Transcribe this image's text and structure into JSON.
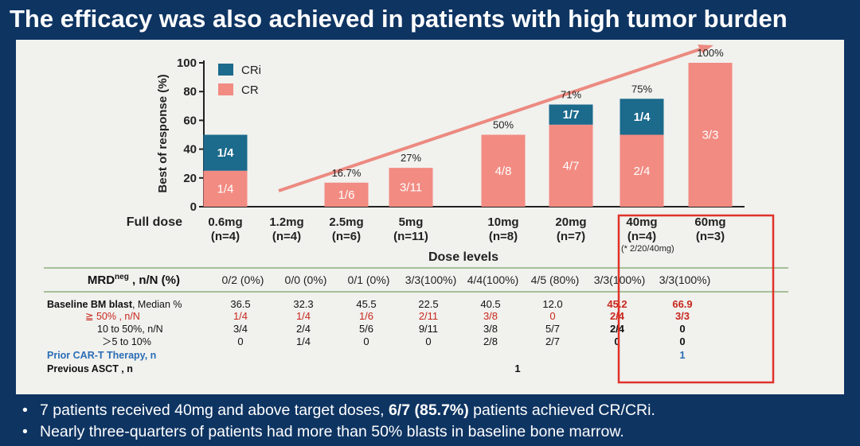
{
  "slide": {
    "title": "The efficacy was also achieved in patients with high tumor burden",
    "bullets": [
      {
        "pre": "7 patients received 40mg and above target doses, ",
        "highlight": "6/7 (85.7%)",
        "post": " patients achieved CR/CRi."
      },
      {
        "pre": "Nearly three-quarters of patients had more than 50% blasts in baseline  bone marrow.",
        "highlight": "",
        "post": ""
      }
    ]
  },
  "chart_data": {
    "type": "bar",
    "stacked": true,
    "ylabel": "Best of response (%)",
    "xlabel": "Dose levels",
    "ylim": [
      0,
      100
    ],
    "yticks": [
      0,
      20,
      40,
      60,
      80,
      100
    ],
    "row_label": "Full dose",
    "categories": [
      "0.6mg",
      "1.2mg",
      "2.5mg",
      "5mg",
      "10mg",
      "20mg",
      "40mg",
      "60mg"
    ],
    "n_labels": [
      "(n=4)",
      "(n=4)",
      "(n=6)",
      "(n=11)",
      "(n=8)",
      "(n=7)",
      "(n=4)",
      "(n=3)"
    ],
    "footnote": "(* 2/20/40mg)",
    "series": [
      {
        "name": "CR",
        "color": "#f28b82",
        "values": [
          25,
          0,
          16.7,
          27,
          50,
          57,
          50,
          100
        ],
        "labels": [
          "1/4",
          "",
          "1/6",
          "3/11",
          "4/8",
          "4/7",
          "2/4",
          "3/3"
        ]
      },
      {
        "name": "CRi",
        "color": "#1c6a8c",
        "values": [
          25,
          0,
          0,
          0,
          0,
          14,
          25,
          0
        ],
        "labels": [
          "1/4",
          "",
          "",
          "",
          "",
          "1/7",
          "1/4",
          ""
        ]
      }
    ],
    "totals": [
      "",
      "",
      "16.7%",
      "27%",
      "50%",
      "71%",
      "75%",
      "100%"
    ],
    "legend": [
      "CRi",
      "CR"
    ]
  },
  "table": {
    "mrd_label_main": "MRD",
    "mrd_label_sup": "neg",
    "mrd_label_rest": " , n/N (%)",
    "mrd_values": [
      "0/2 (0%)",
      "0/0 (0%)",
      "0/1  (0%)",
      "3/3(100%)",
      "4/4(100%)",
      "4/5 (80%)",
      "3/3(100%)",
      "3/3(100%)"
    ],
    "rows": [
      {
        "label_bold": "Baseline BM blast",
        "label_rest": ", Median %",
        "style": "black",
        "values": [
          "36.5",
          "32.3",
          "45.5",
          "22.5",
          "40.5",
          "12.0",
          "45.2",
          "66.9"
        ]
      },
      {
        "label_bold": "",
        "label_rest": "≧ 50% , n/N",
        "style": "red",
        "values": [
          "1/4",
          "1/4",
          "1/6",
          "2/11",
          "3/8",
          "0",
          "2/4",
          "3/3"
        ]
      },
      {
        "label_bold": "",
        "label_rest": "10 to 50%, n/N",
        "style": "black",
        "values": [
          "3/4",
          "2/4",
          "5/6",
          "9/11",
          "3/8",
          "5/7",
          "2/4",
          "0"
        ]
      },
      {
        "label_bold": "",
        "label_rest": "＞5 to 10%",
        "style": "black",
        "values": [
          "0",
          "1/4",
          "0",
          "0",
          "2/8",
          "2/7",
          "0",
          "0"
        ]
      },
      {
        "label_bold": "Prior CAR-T Therapy,  n",
        "label_rest": "",
        "style": "blue",
        "values": [
          "",
          "",
          "",
          "",
          "",
          "",
          "",
          "1"
        ]
      },
      {
        "label_bold": "Previous ASCT , n",
        "label_rest": "",
        "style": "black",
        "values": [
          "",
          "",
          "",
          "",
          "1",
          "",
          "",
          ""
        ]
      }
    ]
  },
  "colors": {
    "cr": "#f28b82",
    "cri": "#1c6a8c",
    "red": "#c8281e",
    "blue": "#2a6db5",
    "box": "#e0322a",
    "arrow": "#ec8a80",
    "divider": "#8ab07a"
  }
}
